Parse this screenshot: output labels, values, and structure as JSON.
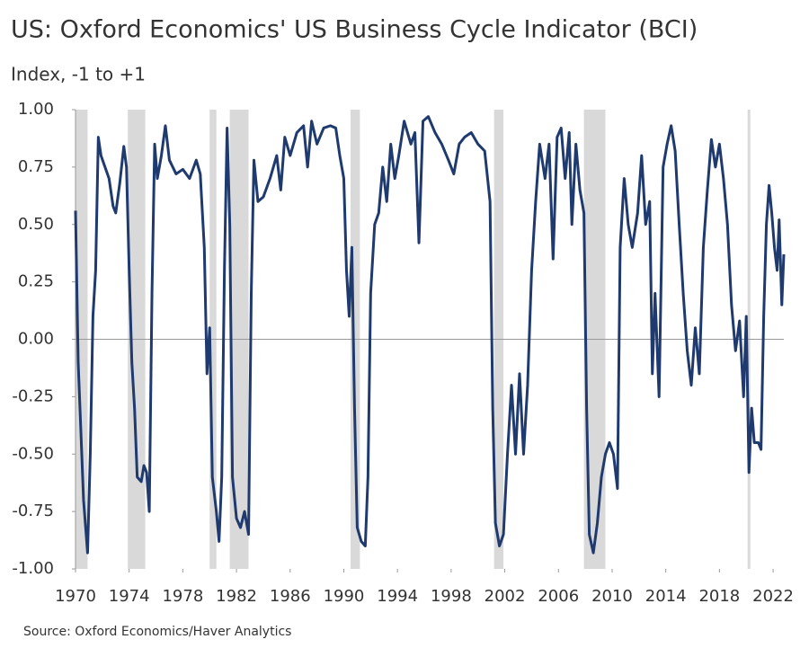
{
  "chart_data": {
    "type": "line",
    "title": "US: Oxford Economics' US Business Cycle Indicator (BCI)",
    "subtitle": "Index, -1 to +1",
    "source": "Source: Oxford Economics/Haver Analytics",
    "xlim": [
      1970,
      2022.8
    ],
    "xticks": [
      1970,
      1974,
      1978,
      1982,
      1986,
      1990,
      1994,
      1998,
      2002,
      2006,
      2010,
      2014,
      2018,
      2022
    ],
    "ylim": [
      -1,
      1
    ],
    "yticks": [
      {
        "value": 1,
        "label": "1.00"
      },
      {
        "value": 0.75,
        "label": "0.75"
      },
      {
        "value": 0.5,
        "label": "0.50"
      },
      {
        "value": 0.25,
        "label": "0.25"
      },
      {
        "value": 0,
        "label": "0.00"
      },
      {
        "value": -0.25,
        "label": "-0.25"
      },
      {
        "value": -0.5,
        "label": "-0.50"
      },
      {
        "value": -0.75,
        "label": "-0.75"
      },
      {
        "value": -1,
        "label": "-1.00"
      }
    ],
    "recessions": [
      [
        1970,
        1970.9
      ],
      [
        1973.9,
        1975.2
      ],
      [
        1980.0,
        1980.5
      ],
      [
        1981.5,
        1982.9
      ],
      [
        1990.5,
        1991.2
      ],
      [
        2001.2,
        2001.9
      ],
      [
        2007.9,
        2009.5
      ],
      [
        2020.1,
        2020.3
      ]
    ],
    "recession_color": "#d9d9d9",
    "zero_line": true,
    "series": [
      {
        "name": "BCI",
        "color": "#1f3a6e",
        "x": [
          1970.0,
          1970.2,
          1970.4,
          1970.6,
          1970.9,
          1971.1,
          1971.3,
          1971.5,
          1971.7,
          1971.9,
          1972.2,
          1972.5,
          1972.8,
          1973.0,
          1973.3,
          1973.6,
          1973.8,
          1974.0,
          1974.2,
          1974.4,
          1974.6,
          1974.9,
          1975.1,
          1975.3,
          1975.5,
          1975.7,
          1975.9,
          1976.1,
          1976.4,
          1976.7,
          1977.0,
          1977.5,
          1978.0,
          1978.5,
          1979.0,
          1979.3,
          1979.6,
          1979.8,
          1980.0,
          1980.2,
          1980.5,
          1980.7,
          1980.9,
          1981.1,
          1981.3,
          1981.5,
          1981.7,
          1982.0,
          1982.3,
          1982.6,
          1982.9,
          1983.1,
          1983.3,
          1983.6,
          1984.0,
          1984.5,
          1985.0,
          1985.3,
          1985.6,
          1986.0,
          1986.5,
          1987.0,
          1987.3,
          1987.6,
          1988.0,
          1988.5,
          1989.0,
          1989.4,
          1989.7,
          1990.0,
          1990.2,
          1990.4,
          1990.6,
          1990.8,
          1991.0,
          1991.3,
          1991.6,
          1991.8,
          1992.0,
          1992.3,
          1992.6,
          1992.9,
          1993.2,
          1993.5,
          1993.8,
          1994.1,
          1994.5,
          1995.0,
          1995.3,
          1995.6,
          1995.9,
          1996.3,
          1996.8,
          1997.3,
          1997.8,
          1998.2,
          1998.6,
          1999.0,
          1999.5,
          2000.0,
          2000.5,
          2000.9,
          2001.1,
          2001.3,
          2001.6,
          2001.9,
          2002.2,
          2002.5,
          2002.8,
          2003.1,
          2003.4,
          2003.7,
          2004.0,
          2004.3,
          2004.6,
          2005.0,
          2005.3,
          2005.6,
          2005.9,
          2006.2,
          2006.5,
          2006.8,
          2007.0,
          2007.3,
          2007.6,
          2007.9,
          2008.1,
          2008.3,
          2008.6,
          2008.9,
          2009.2,
          2009.5,
          2009.8,
          2010.1,
          2010.4,
          2010.6,
          2010.9,
          2011.2,
          2011.5,
          2011.9,
          2012.2,
          2012.5,
          2012.8,
          2013.0,
          2013.2,
          2013.5,
          2013.8,
          2014.1,
          2014.4,
          2014.7,
          2015.0,
          2015.3,
          2015.6,
          2015.9,
          2016.2,
          2016.5,
          2016.8,
          2017.1,
          2017.4,
          2017.7,
          2018.0,
          2018.3,
          2018.6,
          2018.9,
          2019.2,
          2019.5,
          2019.8,
          2020.0,
          2020.2,
          2020.4,
          2020.6,
          2020.9,
          2021.1,
          2021.3,
          2021.5,
          2021.7,
          2021.9,
          2022.1,
          2022.3,
          2022.45,
          2022.65,
          2022.8
        ],
        "values": [
          0.56,
          -0.1,
          -0.4,
          -0.7,
          -0.93,
          -0.5,
          0.1,
          0.3,
          0.88,
          0.8,
          0.75,
          0.7,
          0.58,
          0.55,
          0.68,
          0.84,
          0.75,
          0.3,
          -0.1,
          -0.3,
          -0.6,
          -0.62,
          -0.55,
          -0.58,
          -0.75,
          0.2,
          0.85,
          0.7,
          0.8,
          0.93,
          0.78,
          0.72,
          0.74,
          0.7,
          0.78,
          0.72,
          0.4,
          -0.15,
          0.05,
          -0.6,
          -0.75,
          -0.88,
          -0.6,
          0.3,
          0.92,
          0.5,
          -0.6,
          -0.78,
          -0.82,
          -0.75,
          -0.85,
          0.2,
          0.78,
          0.6,
          0.62,
          0.7,
          0.8,
          0.65,
          0.88,
          0.8,
          0.9,
          0.93,
          0.75,
          0.95,
          0.85,
          0.92,
          0.93,
          0.92,
          0.8,
          0.7,
          0.3,
          0.1,
          0.4,
          -0.3,
          -0.82,
          -0.88,
          -0.9,
          -0.6,
          0.2,
          0.5,
          0.55,
          0.75,
          0.6,
          0.85,
          0.7,
          0.8,
          0.95,
          0.85,
          0.9,
          0.42,
          0.95,
          0.97,
          0.9,
          0.85,
          0.78,
          0.72,
          0.85,
          0.88,
          0.9,
          0.85,
          0.82,
          0.6,
          -0.3,
          -0.8,
          -0.9,
          -0.85,
          -0.5,
          -0.2,
          -0.5,
          -0.15,
          -0.5,
          -0.2,
          0.3,
          0.6,
          0.85,
          0.7,
          0.85,
          0.35,
          0.88,
          0.92,
          0.7,
          0.9,
          0.5,
          0.85,
          0.65,
          0.55,
          -0.3,
          -0.85,
          -0.93,
          -0.8,
          -0.6,
          -0.5,
          -0.45,
          -0.5,
          -0.65,
          0.4,
          0.7,
          0.5,
          0.4,
          0.55,
          0.8,
          0.5,
          0.6,
          -0.15,
          0.2,
          -0.25,
          0.75,
          0.85,
          0.93,
          0.82,
          0.5,
          0.2,
          -0.05,
          -0.2,
          0.05,
          -0.15,
          0.4,
          0.65,
          0.87,
          0.75,
          0.85,
          0.7,
          0.5,
          0.15,
          -0.05,
          0.08,
          -0.25,
          0.1,
          -0.58,
          -0.3,
          -0.45,
          -0.45,
          -0.48,
          0.1,
          0.5,
          0.67,
          0.55,
          0.4,
          0.3,
          0.52,
          0.15,
          0.37
        ]
      }
    ]
  }
}
